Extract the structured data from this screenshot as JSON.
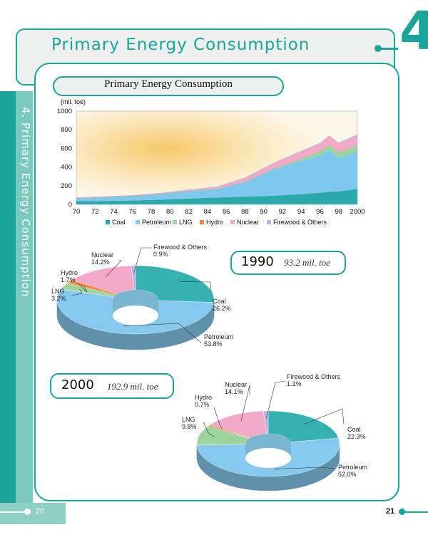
{
  "page": {
    "title": "Primary Energy Consumption",
    "chapter_number": "4",
    "side_title": "4. Primary Energy Consumption",
    "page_left": "20",
    "page_right": "21"
  },
  "chart_data": [
    {
      "type": "area",
      "title": "Primary Energy Consumption",
      "ylabel": "(mil. toe)",
      "xlabel": "",
      "ylim": [
        0,
        1000
      ],
      "yticks": [
        "0",
        "200",
        "400",
        "600",
        "800",
        "1000"
      ],
      "xticks": [
        "70",
        "72",
        "74",
        "76",
        "78",
        "80",
        "82",
        "84",
        "86",
        "88",
        "90",
        "92",
        "94",
        "96",
        "98",
        "2000"
      ],
      "x": [
        70,
        73,
        76,
        79,
        82,
        85,
        88,
        91,
        94,
        96,
        97,
        98,
        100
      ],
      "series": [
        {
          "name": "Coal",
          "color": "#2ba9ab",
          "values": [
            35,
            37,
            42,
            50,
            62,
            74,
            84,
            92,
            110,
            125,
            135,
            140,
            165
          ]
        },
        {
          "name": "Petroleum",
          "color": "#7ec8ee",
          "values": [
            30,
            40,
            48,
            62,
            80,
            92,
            155,
            285,
            360,
            400,
            450,
            360,
            400
          ]
        },
        {
          "name": "LNG",
          "color": "#9dd49e",
          "values": [
            0,
            0,
            0,
            0,
            0,
            1,
            2,
            4,
            22,
            40,
            52,
            55,
            66
          ]
        },
        {
          "name": "Hydro",
          "color": "#f08a3c",
          "values": [
            3,
            3,
            3,
            3,
            3,
            3,
            3,
            3,
            3,
            3,
            3,
            3,
            3
          ]
        },
        {
          "name": "Nuclear",
          "color": "#f2a8c7",
          "values": [
            0,
            0,
            0,
            1,
            6,
            14,
            35,
            50,
            70,
            82,
            90,
            95,
            105
          ]
        },
        {
          "name": "Firewood & Others",
          "color": "#b9b3e0",
          "values": [
            5,
            6,
            6,
            7,
            7,
            7,
            8,
            8,
            8,
            9,
            9,
            9,
            10
          ]
        }
      ]
    },
    {
      "type": "pie",
      "year": "1990",
      "total": "93.2 mil. toe",
      "slices": [
        {
          "name": "Coal",
          "value": 26.2,
          "label": "Coal\n26.2%",
          "color": "#35b1b1"
        },
        {
          "name": "Petroleum",
          "value": 53.8,
          "label": "Petroleum\n53.8%",
          "color": "#86c9ee"
        },
        {
          "name": "LNG",
          "value": 3.2,
          "label": "LNG\n3.2%",
          "color": "#9dd49e"
        },
        {
          "name": "Hydro",
          "value": 1.7,
          "label": "Hydro\n1.7%",
          "color": "#f08a3c"
        },
        {
          "name": "Nuclear",
          "value": 14.2,
          "label": "Nuclear\n14.2%",
          "color": "#f2a8c7"
        },
        {
          "name": "Firewood & Others",
          "value": 0.9,
          "label": "Firewood & Others\n0.9%",
          "color": "#b9b3e0"
        }
      ]
    },
    {
      "type": "pie",
      "year": "2000",
      "total": "192.9 mil. toe",
      "slices": [
        {
          "name": "Coal",
          "value": 22.3,
          "label": "Coal\n22.3%",
          "color": "#35b1b1"
        },
        {
          "name": "Petroleum",
          "value": 52.0,
          "label": "Petroleum\n52.0%",
          "color": "#86c9ee"
        },
        {
          "name": "LNG",
          "value": 9.8,
          "label": "LNG\n9.8%",
          "color": "#9dd49e"
        },
        {
          "name": "Hydro",
          "value": 0.7,
          "label": "Hydro\n0.7%",
          "color": "#f08a3c"
        },
        {
          "name": "Nuclear",
          "value": 14.1,
          "label": "Nuclear\n14.1%",
          "color": "#f2a8c7"
        },
        {
          "name": "Firewood & Others",
          "value": 1.1,
          "label": "Firewood & Others\n1.1%",
          "color": "#b9b3e0"
        }
      ]
    }
  ],
  "colors": {
    "accent": "#1aa59a",
    "panel": "#eef0ef"
  }
}
